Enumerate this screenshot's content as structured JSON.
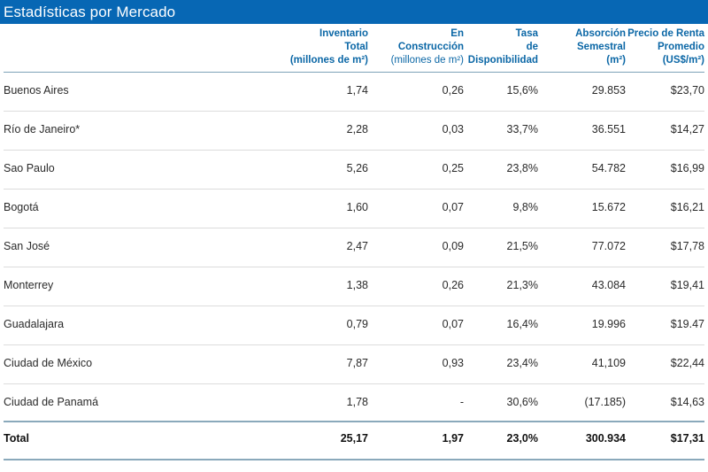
{
  "title": "Estadísticas por Mercado",
  "colors": {
    "brand": "#0767b4",
    "header_text": "#0b67a6",
    "divider": "#8aa9bb"
  },
  "headers": [
    {
      "lines": [
        "Inventario",
        "Total",
        "(millones de m²)"
      ]
    },
    {
      "lines": [
        "En",
        "Construcción",
        "(millones de m²)"
      ]
    },
    {
      "lines": [
        "Tasa",
        "de",
        "Disponibilidad"
      ]
    },
    {
      "lines": [
        "Absorción",
        "Semestral",
        "(m²)"
      ]
    },
    {
      "lines": [
        "Precio de Renta",
        "Promedio",
        "(US$/m²)"
      ]
    }
  ],
  "rows": [
    {
      "market": "Buenos Aires",
      "inventory": "1,74",
      "construction": "0,26",
      "availability": "15,6%",
      "absorption": "29.853",
      "rent": "$23,70"
    },
    {
      "market": "Río de Janeiro*",
      "inventory": "2,28",
      "construction": "0,03",
      "availability": "33,7%",
      "absorption": "36.551",
      "rent": "$14,27"
    },
    {
      "market": "Sao Paulo",
      "inventory": "5,26",
      "construction": "0,25",
      "availability": "23,8%",
      "absorption": "54.782",
      "rent": "$16,99"
    },
    {
      "market": "Bogotá",
      "inventory": "1,60",
      "construction": "0,07",
      "availability": "9,8%",
      "absorption": "15.672",
      "rent": "$16,21"
    },
    {
      "market": "San José",
      "inventory": "2,47",
      "construction": "0,09",
      "availability": "21,5%",
      "absorption": "77.072",
      "rent": "$17,78"
    },
    {
      "market": "Monterrey",
      "inventory": "1,38",
      "construction": "0,26",
      "availability": "21,3%",
      "absorption": "43.084",
      "rent": "$19,41"
    },
    {
      "market": "Guadalajara",
      "inventory": "0,79",
      "construction": "0,07",
      "availability": "16,4%",
      "absorption": "19.996",
      "rent": "$19.47"
    },
    {
      "market": "Ciudad de México",
      "inventory": "7,87",
      "construction": "0,93",
      "availability": "23,4%",
      "absorption": "41,109",
      "rent": "$22,44"
    },
    {
      "market": "Ciudad de Panamá",
      "inventory": "1,78",
      "construction": "-",
      "availability": "30,6%",
      "absorption": "(17.185)",
      "rent": "$14,63"
    }
  ],
  "total": {
    "label": "Total",
    "inventory": "25,17",
    "construction": "1,97",
    "availability": "23,0%",
    "absorption": "300.934",
    "rent": "$17,31"
  }
}
